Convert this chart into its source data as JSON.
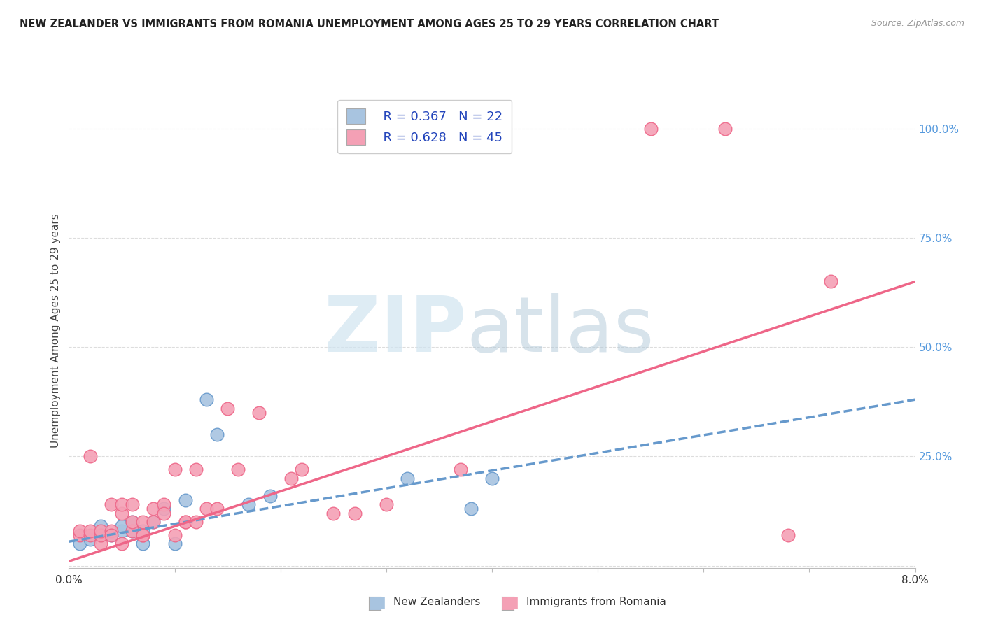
{
  "title": "NEW ZEALANDER VS IMMIGRANTS FROM ROMANIA UNEMPLOYMENT AMONG AGES 25 TO 29 YEARS CORRELATION CHART",
  "source": "Source: ZipAtlas.com",
  "xlabel": "",
  "ylabel": "Unemployment Among Ages 25 to 29 years",
  "xmin": 0.0,
  "xmax": 0.08,
  "ymin": -0.005,
  "ymax": 1.08,
  "xticks": [
    0.0,
    0.01,
    0.02,
    0.03,
    0.04,
    0.05,
    0.06,
    0.07,
    0.08
  ],
  "xticklabels": [
    "0.0%",
    "",
    "",
    "",
    "",
    "",
    "",
    "",
    "8.0%"
  ],
  "yticks_right": [
    0.0,
    0.25,
    0.5,
    0.75,
    1.0
  ],
  "yticklabels_right": [
    "",
    "25.0%",
    "50.0%",
    "75.0%",
    "100.0%"
  ],
  "legend_r1": "R = 0.367",
  "legend_n1": "N = 22",
  "legend_r2": "R = 0.628",
  "legend_n2": "N = 45",
  "nz_color": "#a8c4e0",
  "romania_color": "#f4a0b5",
  "nz_line_color": "#6699cc",
  "romania_line_color": "#ee6688",
  "title_color": "#222222",
  "axis_label_color": "#444444",
  "right_axis_color": "#5599dd",
  "nz_scatter": [
    [
      0.001,
      0.05
    ],
    [
      0.002,
      0.06
    ],
    [
      0.003,
      0.07
    ],
    [
      0.003,
      0.09
    ],
    [
      0.004,
      0.07
    ],
    [
      0.005,
      0.08
    ],
    [
      0.005,
      0.09
    ],
    [
      0.006,
      0.08
    ],
    [
      0.006,
      0.1
    ],
    [
      0.007,
      0.05
    ],
    [
      0.007,
      0.08
    ],
    [
      0.008,
      0.1
    ],
    [
      0.009,
      0.13
    ],
    [
      0.01,
      0.05
    ],
    [
      0.011,
      0.15
    ],
    [
      0.013,
      0.38
    ],
    [
      0.014,
      0.3
    ],
    [
      0.017,
      0.14
    ],
    [
      0.019,
      0.16
    ],
    [
      0.032,
      0.2
    ],
    [
      0.038,
      0.13
    ],
    [
      0.04,
      0.2
    ]
  ],
  "romania_scatter": [
    [
      0.001,
      0.07
    ],
    [
      0.001,
      0.08
    ],
    [
      0.002,
      0.07
    ],
    [
      0.002,
      0.08
    ],
    [
      0.002,
      0.25
    ],
    [
      0.003,
      0.05
    ],
    [
      0.003,
      0.07
    ],
    [
      0.003,
      0.08
    ],
    [
      0.004,
      0.08
    ],
    [
      0.004,
      0.14
    ],
    [
      0.004,
      0.07
    ],
    [
      0.005,
      0.12
    ],
    [
      0.005,
      0.14
    ],
    [
      0.005,
      0.05
    ],
    [
      0.006,
      0.08
    ],
    [
      0.006,
      0.1
    ],
    [
      0.006,
      0.14
    ],
    [
      0.007,
      0.07
    ],
    [
      0.007,
      0.1
    ],
    [
      0.007,
      0.07
    ],
    [
      0.008,
      0.1
    ],
    [
      0.008,
      0.13
    ],
    [
      0.009,
      0.14
    ],
    [
      0.009,
      0.12
    ],
    [
      0.01,
      0.22
    ],
    [
      0.01,
      0.07
    ],
    [
      0.011,
      0.1
    ],
    [
      0.011,
      0.1
    ],
    [
      0.012,
      0.22
    ],
    [
      0.012,
      0.1
    ],
    [
      0.013,
      0.13
    ],
    [
      0.014,
      0.13
    ],
    [
      0.015,
      0.36
    ],
    [
      0.016,
      0.22
    ],
    [
      0.018,
      0.35
    ],
    [
      0.021,
      0.2
    ],
    [
      0.022,
      0.22
    ],
    [
      0.025,
      0.12
    ],
    [
      0.027,
      0.12
    ],
    [
      0.03,
      0.14
    ],
    [
      0.037,
      0.22
    ],
    [
      0.055,
      1.0
    ],
    [
      0.062,
      1.0
    ],
    [
      0.068,
      0.07
    ],
    [
      0.072,
      0.65
    ]
  ],
  "nz_trendline_x": [
    0.0,
    0.08
  ],
  "nz_trendline_y": [
    0.055,
    0.38
  ],
  "romania_trendline_x": [
    0.0,
    0.08
  ],
  "romania_trendline_y": [
    0.01,
    0.65
  ],
  "background_color": "#ffffff",
  "grid_color": "#dddddd"
}
